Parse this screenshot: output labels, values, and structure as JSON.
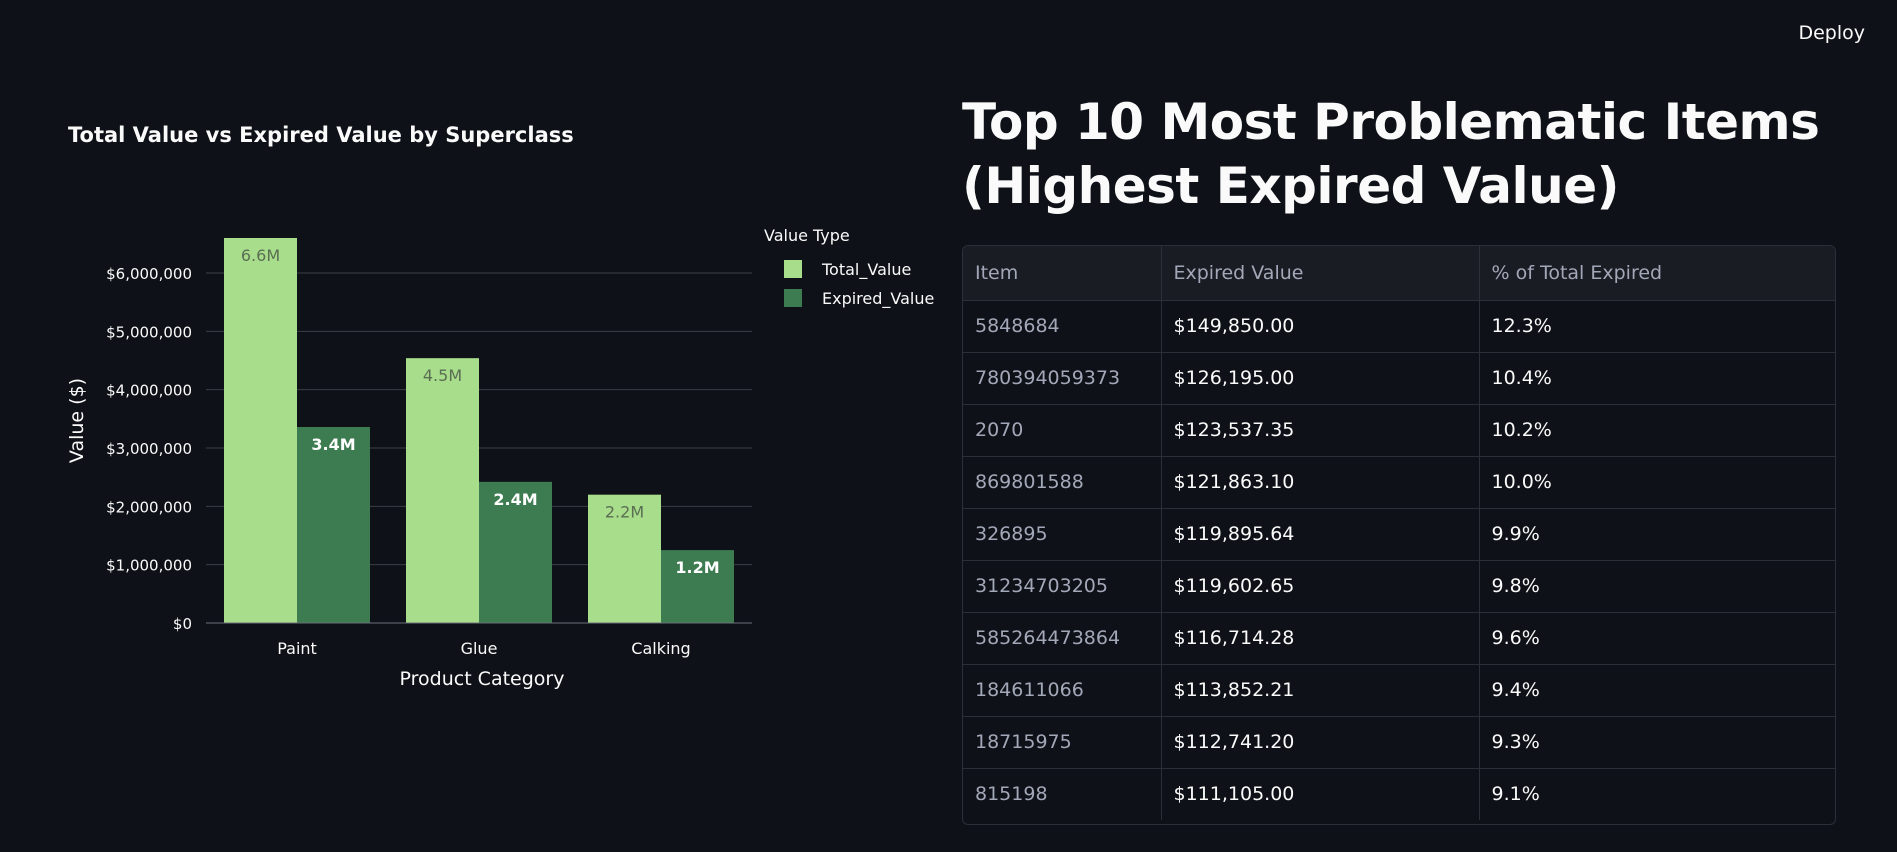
{
  "header": {
    "deploy_label": "Deploy"
  },
  "chart_data": {
    "type": "bar",
    "title": "Total Value vs Expired Value by Superclass",
    "xlabel": "Product Category",
    "ylabel": "Value ($)",
    "categories": [
      "Paint",
      "Glue",
      "Calking"
    ],
    "series": [
      {
        "name": "Total_Value",
        "values": [
          6600000,
          4540000,
          2200000
        ],
        "labels": [
          "6.6M",
          "4.5M",
          "2.2M"
        ],
        "color": "#a8dd8c",
        "label_color": "#5a6e52"
      },
      {
        "name": "Expired_Value",
        "values": [
          3360000,
          2420000,
          1250000
        ],
        "labels": [
          "3.4M",
          "2.4M",
          "1.2M"
        ],
        "color": "#3d7b50",
        "label_color": "#ffffff"
      }
    ],
    "ylim": [
      0,
      6600000
    ],
    "yticks": [
      0,
      1000000,
      2000000,
      3000000,
      4000000,
      5000000,
      6000000
    ],
    "ytick_labels": [
      "$0",
      "$1,000,000",
      "$2,000,000",
      "$3,000,000",
      "$4,000,000",
      "$5,000,000",
      "$6,000,000"
    ],
    "legend_title": "Value Type",
    "legend_position": "right",
    "grid": true
  },
  "table": {
    "title": "Top 10 Most Problematic Items (Highest Expired Value)",
    "columns": [
      "Item",
      "Expired Value",
      "% of Total Expired"
    ],
    "rows": [
      [
        "5848684",
        "$149,850.00",
        "12.3%"
      ],
      [
        "780394059373",
        "$126,195.00",
        "10.4%"
      ],
      [
        "2070",
        "$123,537.35",
        "10.2%"
      ],
      [
        "869801588",
        "$121,863.10",
        "10.0%"
      ],
      [
        "326895",
        "$119,895.64",
        "9.9%"
      ],
      [
        "31234703205",
        "$119,602.65",
        "9.8%"
      ],
      [
        "585264473864",
        "$116,714.28",
        "9.6%"
      ],
      [
        "184611066",
        "$113,852.21",
        "9.4%"
      ],
      [
        "18715975",
        "$112,741.20",
        "9.3%"
      ],
      [
        "815198",
        "$111,105.00",
        "9.1%"
      ]
    ]
  }
}
